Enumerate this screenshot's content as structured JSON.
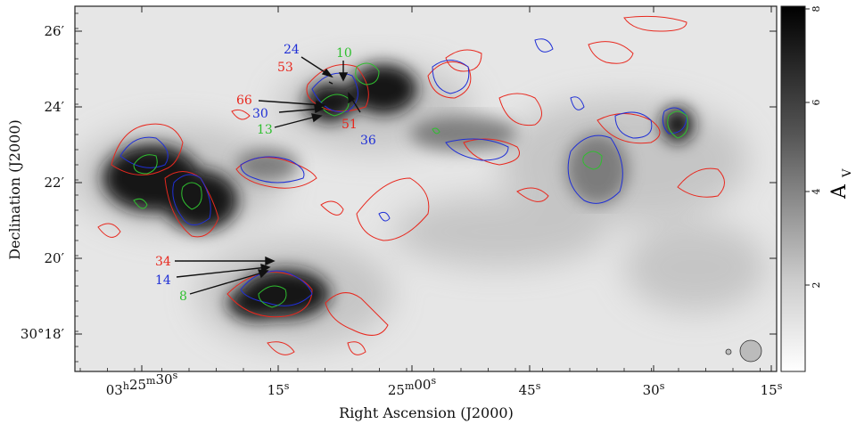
{
  "axes": {
    "xlabel": "Right Ascension (J2000)",
    "ylabel": "Declination (J2000)",
    "colorbar_label": "A",
    "colorbar_sub": "V"
  },
  "ra_ticks": [
    {
      "h": "03",
      "hs": "h",
      "m": "25",
      "ms": "m",
      "s": "30",
      "ss": "s"
    },
    {
      "s": "15",
      "ss": "s"
    },
    {
      "m": "25",
      "ms": "m",
      "s": "00",
      "ss": "s"
    },
    {
      "s": "45",
      "ss": "s"
    },
    {
      "s": "30",
      "ss": "s"
    },
    {
      "s": "15",
      "ss": "s"
    }
  ],
  "dec_ticks": [
    "26′",
    "24′",
    "22′",
    "20′",
    "30°18′"
  ],
  "colorbar_ticks": [
    "8",
    "6",
    "4",
    "2"
  ],
  "labels": {
    "l24": "24",
    "l10": "10",
    "l53": "53",
    "l66": "66",
    "l30": "30",
    "l13": "13",
    "l51": "51",
    "l36": "36",
    "l34": "34",
    "l14": "14",
    "l8": "8"
  },
  "colors": {
    "red": "#e8281e",
    "blue": "#1f2fd6",
    "green": "#2fbf2f",
    "frame": "#222222"
  }
}
